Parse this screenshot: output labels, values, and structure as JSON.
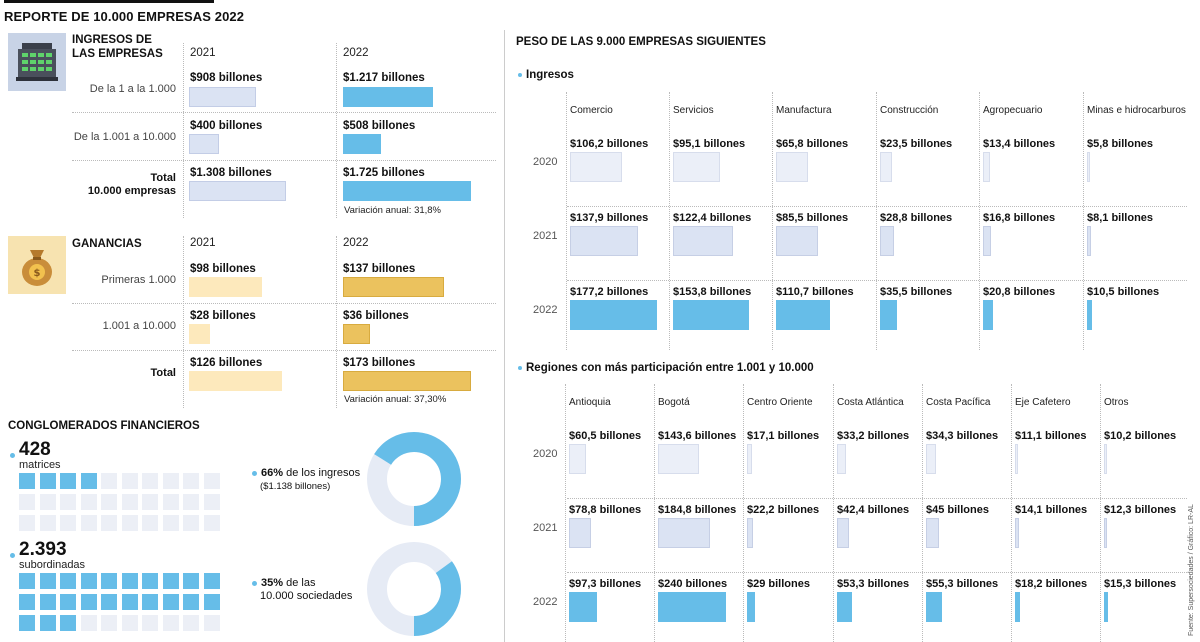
{
  "title": "REPORTE DE 10.000 EMPRESAS 2022",
  "ingresos": {
    "title_line1": "INGRESOS DE",
    "title_line2": "LAS EMPRESAS",
    "year_a": "2021",
    "year_b": "2022",
    "rows": [
      {
        "label": "De la 1 a la 1.000",
        "label2": "",
        "a_text": "$908 billones",
        "a": 908,
        "b_text": "$1.217 billones",
        "b": 1217
      },
      {
        "label": "De la 1.001 a 10.000",
        "label2": "",
        "a_text": "$400 billones",
        "a": 400,
        "b_text": "$508 billones",
        "b": 508
      },
      {
        "label": "Total",
        "label2": "10.000 empresas",
        "a_text": "$1.308 billones",
        "a": 1308,
        "b_text": "$1.725 billones",
        "b": 1725
      }
    ],
    "note": "Variación anual: 31,8%"
  },
  "ganancias": {
    "title": "GANANCIAS",
    "year_a": "2021",
    "year_b": "2022",
    "rows": [
      {
        "label": "Primeras 1.000",
        "a_text": "$98 billones",
        "a": 98,
        "b_text": "$137 billones",
        "b": 137
      },
      {
        "label": "1.001 a 10.000",
        "a_text": "$28 billones",
        "a": 28,
        "b_text": "$36 billones",
        "b": 36
      },
      {
        "label": "Total",
        "a_text": "$126 billones",
        "a": 126,
        "b_text": "$173 billones",
        "b": 173
      }
    ],
    "note": "Variación anual: 37,30%"
  },
  "conglomerados": {
    "title": "CONGLOMERADOS FINANCIEROS",
    "matrices_count": "428",
    "matrices_label": "matrices",
    "matrices_filled": 4,
    "matrices_total": 30,
    "subordinadas_count": "2.393",
    "subordinadas_label": "subordinadas",
    "subordinadas_filled": 23,
    "subordinadas_total": 30,
    "donut1_pct_text": "66%",
    "donut1_pct": 66,
    "donut1_line1": " de los ingresos",
    "donut1_line2": "($1.138 billones)",
    "donut2_pct_text": "35%",
    "donut2_pct": 35,
    "donut2_line1": " de las",
    "donut2_line2": "10.000 sociedades"
  },
  "peso": {
    "title": "PESO DE LAS 9.000 EMPRESAS SIGUIENTES",
    "ingresos_label": "Ingresos",
    "regiones_label": "Regiones con más participación entre 1.001 y 10.000",
    "years": [
      "2020",
      "2021",
      "2022"
    ]
  },
  "chart_data": [
    {
      "type": "bar",
      "title": "Ingresos de las empresas",
      "categories": [
        "De la 1 a la 1.000",
        "De la 1.001 a 10.000",
        "Total 10.000 empresas"
      ],
      "series": [
        {
          "name": "2021",
          "values": [
            908,
            400,
            1308
          ]
        },
        {
          "name": "2022",
          "values": [
            1217,
            508,
            1725
          ]
        }
      ],
      "unit": "billones de pesos"
    },
    {
      "type": "bar",
      "title": "Ganancias",
      "categories": [
        "Primeras 1.000",
        "1.001 a 10.000",
        "Total"
      ],
      "series": [
        {
          "name": "2021",
          "values": [
            98,
            28,
            126
          ]
        },
        {
          "name": "2022",
          "values": [
            137,
            36,
            173
          ]
        }
      ],
      "unit": "billones de pesos"
    },
    {
      "type": "bar",
      "title": "Peso de las 9.000 empresas siguientes - Ingresos",
      "categories": [
        "Comercio",
        "Servicios",
        "Manufactura",
        "Construcción",
        "Agropecuario",
        "Minas e hidrocarburos"
      ],
      "series": [
        {
          "name": "2020",
          "values": [
            106.2,
            95.1,
            65.8,
            23.5,
            13.4,
            5.8
          ],
          "labels": [
            "$106,2 billones",
            "$95,1 billones",
            "$65,8 billones",
            "$23,5 billones",
            "$13,4 billones",
            "$5,8 billones"
          ]
        },
        {
          "name": "2021",
          "values": [
            137.9,
            122.4,
            85.5,
            28.8,
            16.8,
            8.1
          ],
          "labels": [
            "$137,9 billones",
            "$122,4 billones",
            "$85,5 billones",
            "$28,8 billones",
            "$16,8 billones",
            "$8,1 billones"
          ]
        },
        {
          "name": "2022",
          "values": [
            177.2,
            153.8,
            110.7,
            35.5,
            20.8,
            10.5
          ],
          "labels": [
            "$177,2 billones",
            "$153,8 billones",
            "$110,7 billones",
            "$35,5 billones",
            "$20,8 billones",
            "$10,5 billones"
          ]
        }
      ]
    },
    {
      "type": "bar",
      "title": "Regiones con más participación entre 1.001 y 10.000",
      "categories": [
        "Antioquia",
        "Bogotá",
        "Centro Oriente",
        "Costa Atlántica",
        "Costa Pacífica",
        "Eje Cafetero",
        "Otros"
      ],
      "series": [
        {
          "name": "2020",
          "values": [
            60.5,
            143.6,
            17.1,
            33.2,
            34.3,
            11.1,
            10.2
          ],
          "labels": [
            "$60,5 billones",
            "$143,6 billones",
            "$17,1 billones",
            "$33,2 billones",
            "$34,3 billones",
            "$11,1 billones",
            "$10,2 billones"
          ]
        },
        {
          "name": "2021",
          "values": [
            78.8,
            184.8,
            22.2,
            42.4,
            45,
            14.1,
            12.3
          ],
          "labels": [
            "$78,8 billones",
            "$184,8 billones",
            "$22,2 billones",
            "$42,4 billones",
            "$45 billones",
            "$14,1 billones",
            "$12,3 billones"
          ]
        },
        {
          "name": "2022",
          "values": [
            97.3,
            240,
            29,
            53.3,
            55.3,
            18.2,
            15.3
          ],
          "labels": [
            "$97,3 billones",
            "$240 billones",
            "$29 billones",
            "$53,3 billones",
            "$55,3 billones",
            "$18,2 billones",
            "$15,3 billones"
          ]
        }
      ]
    },
    {
      "type": "pie",
      "title": "Conglomerados financieros",
      "donuts": [
        {
          "label": "de los ingresos ($1.138 billones)",
          "value": 66
        },
        {
          "label": "de las 10.000 sociedades",
          "value": 35
        }
      ]
    }
  ],
  "source": "Fuente: Supersociedades / Gráfico: LR-AL"
}
